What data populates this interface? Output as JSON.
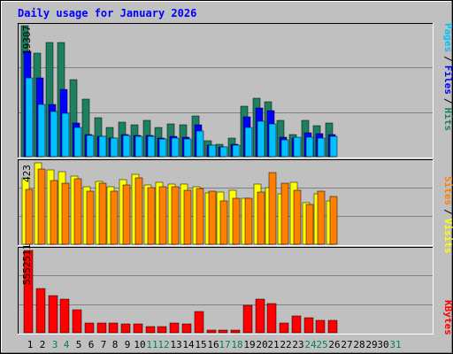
{
  "chart_data": [
    {
      "type": "bar",
      "title": "Daily usage for January 2026",
      "panel": "pages-files-hits",
      "y_max_label": "19307",
      "ylim": [
        0,
        19307
      ],
      "right_labels": [
        "Pages",
        "/",
        "Files",
        "/",
        "Hits"
      ],
      "categories": [
        "1",
        "2",
        "3",
        "4",
        "5",
        "6",
        "7",
        "8",
        "9",
        "10",
        "11",
        "12",
        "13",
        "14",
        "15",
        "16",
        "17",
        "18",
        "19",
        "20",
        "21",
        "22",
        "23",
        "24",
        "25",
        "26",
        "27",
        "28",
        "29",
        "30",
        "31"
      ],
      "series": [
        {
          "name": "Hits",
          "values": [
            19307,
            15210,
            16810,
            16810,
            11400,
            8480,
            5750,
            4310,
            5100,
            4700,
            5360,
            4310,
            4850,
            4710,
            6060,
            2340,
            1880,
            2720,
            7470,
            8620,
            8080,
            5360,
            3240,
            5360,
            4560,
            4970,
            0,
            0,
            0,
            0,
            0
          ]
        },
        {
          "name": "Files",
          "values": [
            15500,
            11650,
            7720,
            9860,
            4970,
            3240,
            2990,
            2720,
            3240,
            3110,
            3110,
            2720,
            2990,
            2860,
            4710,
            1750,
            1480,
            1880,
            5900,
            7210,
            6730,
            2860,
            2720,
            3510,
            3370,
            3240,
            0,
            0,
            0,
            0,
            0
          ]
        },
        {
          "name": "Pages",
          "values": [
            11650,
            7650,
            6600,
            6330,
            4310,
            3110,
            2990,
            2720,
            3110,
            2990,
            2990,
            2590,
            2720,
            2590,
            3780,
            1750,
            1480,
            1750,
            4310,
            5230,
            4850,
            2450,
            2860,
            2850,
            2720,
            2990,
            0,
            0,
            0,
            0,
            0
          ]
        }
      ]
    },
    {
      "type": "bar",
      "panel": "sites-visits",
      "y_max_label": "423",
      "ylim": [
        0,
        423
      ],
      "right_labels": [
        "Sites",
        "/",
        "Visits"
      ],
      "series": [
        {
          "name": "Visits",
          "values": [
            347,
            423,
            387,
            375,
            352,
            301,
            327,
            300,
            337,
            361,
            308,
            320,
            314,
            312,
            300,
            268,
            273,
            281,
            239,
            311,
            295,
            264,
            323,
            215,
            260,
            223,
            0,
            0,
            0,
            0,
            0
          ]
        },
        {
          "name": "Sites",
          "values": [
            286,
            392,
            333,
            319,
            340,
            275,
            317,
            277,
            307,
            344,
            296,
            298,
            301,
            280,
            291,
            278,
            226,
            241,
            238,
            273,
            372,
            315,
            281,
            209,
            276,
            247,
            0,
            0,
            0,
            0,
            0
          ]
        }
      ]
    },
    {
      "type": "bar",
      "panel": "kbytes",
      "y_max_label": "5552511",
      "ylim": [
        0,
        5552511
      ],
      "right_labels": [
        "KBytes"
      ],
      "series": [
        {
          "name": "KBytes",
          "values": [
            5552511,
            2970000,
            2520000,
            2290000,
            1580000,
            627000,
            627000,
            627000,
            569000,
            570000,
            400000,
            400000,
            627000,
            570000,
            1430000,
            200000,
            171000,
            170000,
            1880000,
            2290000,
            2000000,
            670000,
            1130000,
            1030000,
            860000,
            860000,
            0,
            0,
            0,
            0,
            0
          ]
        }
      ]
    }
  ],
  "x_tick_colors": [
    "#000000",
    "#000000",
    "#00805c",
    "#00805c",
    "#000000",
    "#000000",
    "#000000",
    "#000000",
    "#000000",
    "#000000",
    "#00805c",
    "#00805c",
    "#000000",
    "#000000",
    "#000000",
    "#000000",
    "#00805c",
    "#00805c",
    "#000000",
    "#000000",
    "#000000",
    "#000000",
    "#000000",
    "#00805c",
    "#00805c",
    "#000000",
    "#000000",
    "#000000",
    "#000000",
    "#000000",
    "#00805c"
  ],
  "colors": {
    "background": "#c0c0c0",
    "title": "#0000ff",
    "hits": "#1e8060",
    "files": "#0000ff",
    "pages": "#00c0ff",
    "visits": "#ffff00",
    "sites": "#ff8000",
    "kbytes": "#ff0000",
    "grid": "#808080"
  }
}
